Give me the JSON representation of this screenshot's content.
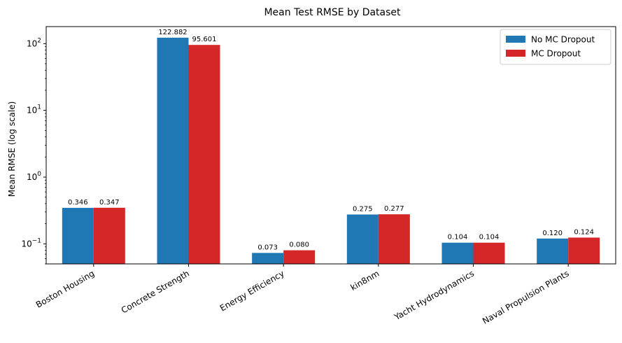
{
  "chart_data": {
    "type": "bar",
    "title": "Mean Test RMSE by Dataset",
    "xlabel": "",
    "ylabel": "Mean RMSE (log scale)",
    "yscale": "log",
    "ylim": [
      0.05,
      180
    ],
    "yticks": [
      {
        "base": "10",
        "exp": "−1",
        "value": 0.1
      },
      {
        "base": "10",
        "exp": "0",
        "value": 1
      },
      {
        "base": "10",
        "exp": "1",
        "value": 10
      },
      {
        "base": "10",
        "exp": "2",
        "value": 100
      }
    ],
    "categories": [
      "Boston Housing",
      "Concrete Strength",
      "Energy Efficiency",
      "kin8nm",
      "Yacht Hydrodynamics",
      "Naval Propulsion Plants"
    ],
    "series": [
      {
        "name": "No MC Dropout",
        "color": "#1f77b4",
        "values": [
          0.346,
          122.882,
          0.073,
          0.275,
          0.104,
          0.12
        ],
        "labels": [
          "0.346",
          "122.882",
          "0.073",
          "0.275",
          "0.104",
          "0.120"
        ]
      },
      {
        "name": "MC Dropout",
        "color": "#d62728",
        "values": [
          0.347,
          95.601,
          0.08,
          0.277,
          0.104,
          0.124
        ],
        "labels": [
          "0.347",
          "95.601",
          "0.080",
          "0.277",
          "0.104",
          "0.124"
        ]
      }
    ],
    "legend": "top-right",
    "grid": false
  }
}
